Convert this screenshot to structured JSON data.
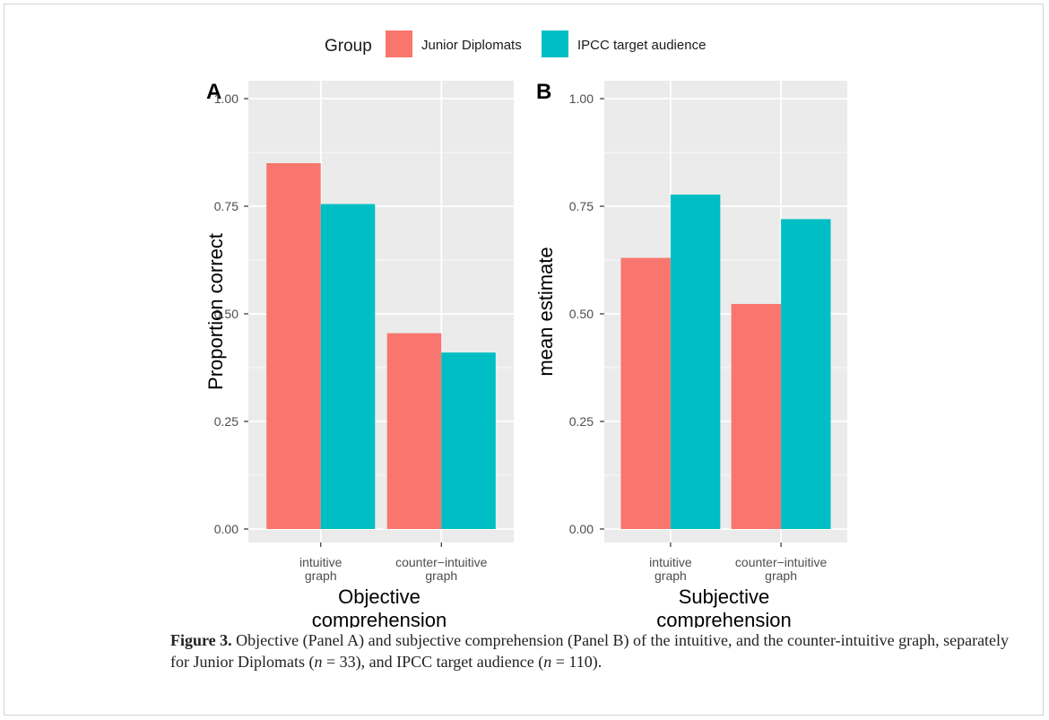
{
  "chart_data": [
    {
      "type": "bar",
      "panel_label": "A",
      "categories": [
        "intuitive\ngraph",
        "counter−intuitive\ngraph"
      ],
      "series": [
        {
          "name": "Junior Diplomats",
          "values": [
            0.85,
            0.455
          ]
        },
        {
          "name": "IPCC target audience",
          "values": [
            0.755,
            0.41
          ]
        }
      ],
      "xlabel": "Objective\ncomprehension",
      "ylabel": "Proportion correct",
      "ylim": [
        0,
        1
      ],
      "yticks": [
        "0.00",
        "0.25",
        "0.50",
        "0.75",
        "1.00"
      ],
      "grid": true
    },
    {
      "type": "bar",
      "panel_label": "B",
      "categories": [
        "intuitive\ngraph",
        "counter−intuitive\ngraph"
      ],
      "series": [
        {
          "name": "Junior Diplomats",
          "values": [
            0.63,
            0.523
          ]
        },
        {
          "name": "IPCC target audience",
          "values": [
            0.777,
            0.72
          ]
        }
      ],
      "xlabel": "Subjective\ncomprehension",
      "ylabel": "mean estimate",
      "ylim": [
        0,
        1
      ],
      "yticks": [
        "0.00",
        "0.25",
        "0.50",
        "0.75",
        "1.00"
      ],
      "grid": true
    }
  ],
  "legend": {
    "title": "Group",
    "position": "top",
    "items": [
      "Junior Diplomats",
      "IPCC target audience"
    ]
  },
  "colors": {
    "series": [
      "#f8766d",
      "#00bfc4"
    ],
    "panel_bg": "#ebebeb",
    "grid": "#ffffff"
  },
  "caption": {
    "label": "Figure 3.",
    "text_1": " Objective (Panel A) and subjective comprehension (Panel B) of the intuitive, and the counter-intuitive graph, separately for Junior Diplomats (",
    "n_symbol_1": "n",
    "text_2": " = 33), and IPCC target audience (",
    "n_symbol_2": "n",
    "text_3": " = 110)."
  }
}
